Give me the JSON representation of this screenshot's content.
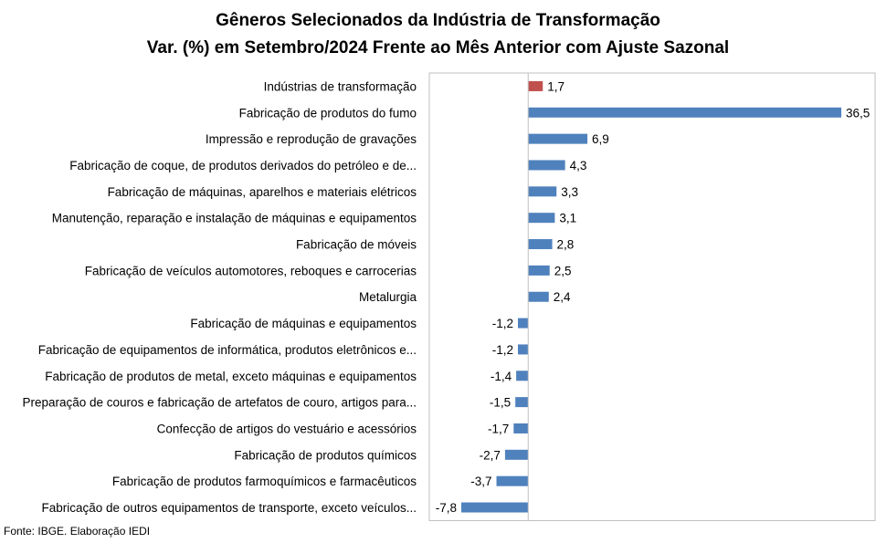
{
  "chart_data": {
    "type": "bar",
    "orientation": "horizontal",
    "title": "Gêneros Selecionados da Indústria de Transformação",
    "subtitle": "Var. (%) em Setembro/2024 Frente ao Mês Anterior com Ajuste Sazonal",
    "categories": [
      "Indústrias de transformação",
      "Fabricação de produtos do fumo",
      "Impressão e reprodução de gravações",
      "Fabricação de coque, de produtos derivados do petróleo e de...",
      "Fabricação de máquinas, aparelhos e materiais elétricos",
      "Manutenção, reparação e instalação de máquinas e equipamentos",
      "Fabricação de móveis",
      "Fabricação de veículos automotores, reboques e carrocerias",
      "Metalurgia",
      "Fabricação de máquinas e equipamentos",
      "Fabricação de equipamentos de informática, produtos eletrônicos e...",
      "Fabricação de produtos de metal, exceto máquinas e equipamentos",
      "Preparação de couros e fabricação de artefatos de couro, artigos para...",
      "Confecção de artigos do vestuário e acessórios",
      "Fabricação de produtos químicos",
      "Fabricação de produtos farmoquímicos e farmacêuticos",
      "Fabricação de outros equipamentos de transporte, exceto veículos..."
    ],
    "values": [
      1.7,
      36.5,
      6.9,
      4.3,
      3.3,
      3.1,
      2.8,
      2.5,
      2.4,
      -1.2,
      -1.2,
      -1.4,
      -1.5,
      -1.7,
      -2.7,
      -3.7,
      -7.8
    ],
    "data_labels": [
      "1,7",
      "36,5",
      "6,9",
      "4,3",
      "3,3",
      "3,1",
      "2,8",
      "2,5",
      "2,4",
      "-1,2",
      "-1,2",
      "-1,4",
      "-1,5",
      "-1,7",
      "-2,7",
      "-3,7",
      "-7,8"
    ],
    "highlight_index": 0,
    "xlim": [
      -7.8,
      36.5
    ],
    "grid": false,
    "legend": "none",
    "colors": {
      "bar": "#4F81BD",
      "highlight": "#C0504D",
      "axis": "#BFBFBF",
      "text": "#000000"
    }
  },
  "footer": {
    "source": "Fonte: IBGE. Elaboração IEDI"
  }
}
